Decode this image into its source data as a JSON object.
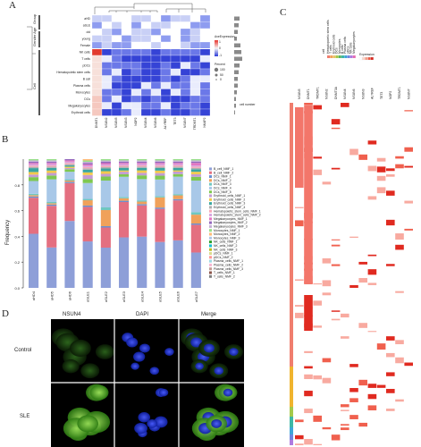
{
  "panels": {
    "a": "A",
    "b": "B",
    "c": "C",
    "d": "D"
  },
  "panel_a": {
    "rows": [
      "aHD",
      "aSLE",
      "old",
      "young",
      "Female",
      "NK cells",
      "T cells",
      "pDCs",
      "Hematopoietic stem cells",
      "B cell",
      "Plasma cells",
      "Monocytes",
      "DCs",
      "Megakaryocytes",
      "Erythroid cells"
    ],
    "groups": [
      "Group",
      "Gender Age",
      "Cell"
    ],
    "columns": [
      "DNMT1",
      "NSUN2",
      "NSUN5",
      "NSUN3",
      "NOP2",
      "NSUN4",
      "NSUN6",
      "ALYREF",
      "TET3",
      "NSUN7",
      "TRDMT1",
      "NKAP2"
    ],
    "legend_title": "AveExpression",
    "percent_title": "Percent",
    "bar_label": "cell number",
    "legend_ticks": [
      "1",
      "0",
      "-1"
    ],
    "percent_ticks": [
      "100",
      "50",
      "0"
    ]
  },
  "chart_data": {
    "type": "bar",
    "ylabel": "Frequency",
    "ylim": [
      0,
      1
    ],
    "yticks": [
      "0.0",
      "0.2",
      "0.4",
      "0.6",
      "0.8"
    ],
    "categories": [
      "aHD4",
      "aHD5",
      "aHD6",
      "aSLE1",
      "aSLE2",
      "aSLE3",
      "aSLE4",
      "aSLE5",
      "aSLE6",
      "aSLE7"
    ],
    "series": [
      {
        "name": "B_cell_NMF_1",
        "color": "#8e9fd8",
        "values": [
          0.42,
          0.32,
          0.53,
          0.35,
          0.3,
          0.4,
          0.41,
          0.36,
          0.38,
          0.28
        ]
      },
      {
        "name": "B_cell_NMF_2",
        "color": "#e46f80",
        "values": [
          0.28,
          0.33,
          0.3,
          0.26,
          0.15,
          0.28,
          0.25,
          0.26,
          0.32,
          0.22
        ]
      },
      {
        "name": "DCs_NMF_1",
        "color": "#6a8fd0",
        "values": [
          0.01,
          0.01,
          0.01,
          0.01,
          0.01,
          0.01,
          0.01,
          0.01,
          0.01,
          0.01
        ]
      },
      {
        "name": "DCs_NMF_2",
        "color": "#f0a15a",
        "values": [
          0.01,
          0.01,
          0.01,
          0.04,
          0.12,
          0.02,
          0.02,
          0.08,
          0.03,
          0.07
        ]
      },
      {
        "name": "DCs_NMF_3",
        "color": "#6fc7c0",
        "values": [
          0.01,
          0.01,
          0.01,
          0.01,
          0.02,
          0.01,
          0.01,
          0.01,
          0.01,
          0.02
        ]
      },
      {
        "name": "DCs_NMF_4",
        "color": "#a8c8e8",
        "values": [
          0.1,
          0.18,
          0.06,
          0.12,
          0.2,
          0.16,
          0.17,
          0.13,
          0.14,
          0.25
        ]
      },
      {
        "name": "DCs_NMF_5",
        "color": "#7ec850",
        "values": [
          0.03,
          0.03,
          0.02,
          0.03,
          0.03,
          0.02,
          0.03,
          0.03,
          0.02,
          0.03
        ]
      },
      {
        "name": "Erythroid_cells_NMF_1",
        "color": "#c39bd3",
        "values": [
          0.02,
          0.02,
          0.01,
          0.03,
          0.02,
          0.02,
          0.02,
          0.02,
          0.02,
          0.02
        ]
      },
      {
        "name": "Erythroid_cells_NMF_2",
        "color": "#f2c94c",
        "values": [
          0.02,
          0.02,
          0.01,
          0.02,
          0.02,
          0.01,
          0.02,
          0.02,
          0.01,
          0.02
        ]
      },
      {
        "name": "Erythroid_cells_NMF_3",
        "color": "#3aa6a0",
        "values": [
          0.03,
          0.02,
          0.01,
          0.02,
          0.02,
          0.02,
          0.02,
          0.02,
          0.02,
          0.02
        ]
      },
      {
        "name": "Erythroid_cells_NMF_4",
        "color": "#b0b0b0",
        "values": [
          0.01,
          0.01,
          0.01,
          0.01,
          0.01,
          0.01,
          0.01,
          0.01,
          0.01,
          0.01
        ]
      },
      {
        "name": "Hematopoietic_stem_cells_NMF_1",
        "color": "#f7a8b8",
        "values": [
          0.01,
          0.01,
          0.01,
          0.01,
          0.01,
          0.01,
          0.01,
          0.01,
          0.01,
          0.01
        ]
      },
      {
        "name": "Hematopoietic_stem_cells_NMF_2",
        "color": "#d9a7e0",
        "values": [
          0.01,
          0.01,
          0.01,
          0.01,
          0.01,
          0.01,
          0.01,
          0.01,
          0.01,
          0.01
        ]
      },
      {
        "name": "Megakaryocytes_NMF_1",
        "color": "#e377c2",
        "values": [
          0.01,
          0.01,
          0.01,
          0.01,
          0.01,
          0.01,
          0.01,
          0.01,
          0.01,
          0.02
        ]
      },
      {
        "name": "Megakaryocytes_NMF_2",
        "color": "#9467bd",
        "values": [
          0.01,
          0.01,
          0.01,
          0.01,
          0.01,
          0.01,
          0.01,
          0.01,
          0.01,
          0.01
        ]
      },
      {
        "name": "Megakaryocytes_NMF_3",
        "color": "#c5b0d5",
        "values": [
          0.01,
          0.01,
          0.0,
          0.01,
          0.01,
          0.01,
          0.01,
          0.01,
          0.01,
          0.01
        ]
      },
      {
        "name": "Monocytes_NMF_1",
        "color": "#98df8a",
        "values": [
          0.01,
          0.01,
          0.0,
          0.01,
          0.01,
          0.01,
          0.01,
          0.01,
          0.01,
          0.01
        ]
      },
      {
        "name": "Monocytes_NMF_2",
        "color": "#ffbb78",
        "values": [
          0.0,
          0.0,
          0.0,
          0.01,
          0.0,
          0.0,
          0.0,
          0.0,
          0.0,
          0.0
        ]
      },
      {
        "name": "Monocytes_NMF_3",
        "color": "#aec7e8",
        "values": [
          0.0,
          0.0,
          0.0,
          0.0,
          0.0,
          0.0,
          0.0,
          0.0,
          0.0,
          0.0
        ]
      },
      {
        "name": "NK_cells_NMF_1",
        "color": "#2ca02c",
        "values": [
          0.0,
          0.0,
          0.0,
          0.0,
          0.0,
          0.0,
          0.0,
          0.0,
          0.0,
          0.0
        ]
      },
      {
        "name": "NK_cells_NMF_2",
        "color": "#17becf",
        "values": [
          0.0,
          0.0,
          0.0,
          0.0,
          0.0,
          0.0,
          0.0,
          0.0,
          0.0,
          0.0
        ]
      },
      {
        "name": "NK_cells_NMF_3",
        "color": "#bcbd22",
        "values": [
          0.0,
          0.0,
          0.0,
          0.0,
          0.0,
          0.0,
          0.0,
          0.0,
          0.0,
          0.0
        ]
      },
      {
        "name": "pDCs_NMF_1",
        "color": "#dbdb8d",
        "values": [
          0.0,
          0.0,
          0.0,
          0.0,
          0.0,
          0.0,
          0.0,
          0.0,
          0.0,
          0.0
        ]
      },
      {
        "name": "pDCs_NMF_2",
        "color": "#ff9896",
        "values": [
          0.0,
          0.0,
          0.0,
          0.0,
          0.0,
          0.0,
          0.0,
          0.0,
          0.0,
          0.0
        ]
      },
      {
        "name": "Plasma_cells_NMF_1",
        "color": "#9edae5",
        "values": [
          0.0,
          0.0,
          0.0,
          0.0,
          0.0,
          0.0,
          0.0,
          0.0,
          0.0,
          0.0
        ]
      },
      {
        "name": "Plasma_cells_NMF_2",
        "color": "#f7b6d2",
        "values": [
          0.0,
          0.0,
          0.0,
          0.0,
          0.0,
          0.0,
          0.0,
          0.0,
          0.0,
          0.0
        ]
      },
      {
        "name": "Plasma_cells_NMF_3",
        "color": "#c49c94",
        "values": [
          0.0,
          0.0,
          0.0,
          0.0,
          0.0,
          0.0,
          0.0,
          0.0,
          0.0,
          0.0
        ]
      },
      {
        "name": "T_cells_NMF_1",
        "color": "#8c564b",
        "values": [
          0.0,
          0.0,
          0.0,
          0.0,
          0.0,
          0.0,
          0.0,
          0.0,
          0.0,
          0.0
        ]
      },
      {
        "name": "T_cells_NMF_2",
        "color": "#7f7f7f",
        "values": [
          0.0,
          0.0,
          0.0,
          0.0,
          0.0,
          0.0,
          0.0,
          0.0,
          0.0,
          0.0
        ]
      }
    ]
  },
  "panel_c": {
    "genes": [
      "NSUN5",
      "DNMT1",
      "TRDMT1",
      "NSUN2",
      "DNMT3A",
      "NSUN4",
      "NSUN6",
      "NSUN3",
      "ALYREF",
      "TET3",
      "NOP2",
      "TRDMT1",
      "NSUN7"
    ],
    "legend_group": "cell",
    "legend_cells": [
      "Hematopoietic stem cells",
      "T cells",
      "Erythroid cells",
      "DCs",
      "Monocytes",
      "B cells",
      "Plasma cells",
      "pDCs",
      "NK cells",
      "Megakaryocytes"
    ],
    "legend_expr": "Expression"
  },
  "panel_d": {
    "col_titles": [
      "NSUN4",
      "DAPI",
      "Merge"
    ],
    "row_titles": [
      "Control",
      "SLE"
    ]
  }
}
